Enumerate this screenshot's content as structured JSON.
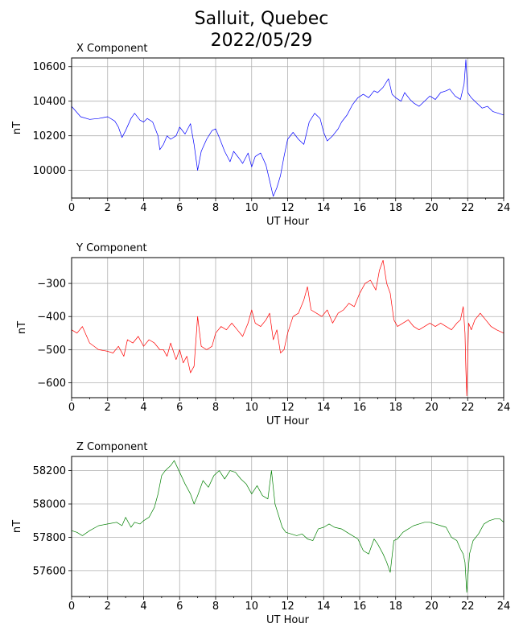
{
  "figure": {
    "title_line1": "Salluit, Quebec",
    "title_line2": "2022/05/29"
  },
  "chart_data": [
    {
      "type": "line",
      "title": "X Component",
      "xlabel": "UT Hour",
      "ylabel": "nT",
      "color": "#0000ff",
      "xlim": [
        0,
        24
      ],
      "ylim": [
        9840,
        10650
      ],
      "xticks": [
        0,
        2,
        4,
        6,
        8,
        10,
        12,
        14,
        16,
        18,
        20,
        22,
        24
      ],
      "yticks": [
        10000,
        10200,
        10400,
        10600
      ],
      "grid": true,
      "x": [
        0,
        0.5,
        1,
        1.5,
        2,
        2.4,
        2.6,
        2.8,
        3.0,
        3.3,
        3.5,
        3.8,
        4.0,
        4.2,
        4.5,
        4.8,
        4.9,
        5.1,
        5.3,
        5.5,
        5.8,
        6.0,
        6.3,
        6.6,
        6.8,
        7.0,
        7.2,
        7.5,
        7.8,
        8.0,
        8.2,
        8.5,
        8.8,
        9.0,
        9.3,
        9.5,
        9.8,
        10.0,
        10.2,
        10.5,
        10.8,
        11.0,
        11.2,
        11.4,
        11.6,
        11.8,
        12.0,
        12.3,
        12.6,
        12.9,
        13.2,
        13.5,
        13.8,
        14.0,
        14.2,
        14.5,
        14.8,
        15.0,
        15.3,
        15.6,
        15.9,
        16.2,
        16.5,
        16.8,
        17.0,
        17.3,
        17.6,
        17.8,
        18.0,
        18.3,
        18.5,
        18.8,
        19.0,
        19.3,
        19.6,
        19.9,
        20.2,
        20.5,
        20.8,
        21.0,
        21.3,
        21.6,
        21.8,
        21.9,
        22.0,
        22.2,
        22.5,
        22.8,
        23.1,
        23.4,
        23.7,
        24.0
      ],
      "y": [
        10370,
        10310,
        10295,
        10300,
        10310,
        10285,
        10250,
        10190,
        10230,
        10300,
        10330,
        10290,
        10280,
        10300,
        10280,
        10200,
        10120,
        10150,
        10200,
        10180,
        10200,
        10250,
        10210,
        10270,
        10150,
        10000,
        10110,
        10180,
        10230,
        10240,
        10190,
        10110,
        10050,
        10110,
        10070,
        10040,
        10100,
        10020,
        10080,
        10100,
        10030,
        9940,
        9850,
        9900,
        9970,
        10080,
        10180,
        10220,
        10180,
        10150,
        10280,
        10330,
        10300,
        10220,
        10170,
        10200,
        10240,
        10280,
        10320,
        10380,
        10420,
        10440,
        10420,
        10460,
        10450,
        10480,
        10530,
        10440,
        10420,
        10400,
        10450,
        10410,
        10390,
        10370,
        10400,
        10430,
        10410,
        10450,
        10460,
        10470,
        10430,
        10410,
        10500,
        10640,
        10450,
        10420,
        10390,
        10360,
        10370,
        10340,
        10330,
        10320
      ]
    },
    {
      "type": "line",
      "title": "Y Component",
      "xlabel": "UT Hour",
      "ylabel": "nT",
      "color": "#ff0000",
      "xlim": [
        0,
        24
      ],
      "ylim": [
        -645,
        -222
      ],
      "xticks": [
        0,
        2,
        4,
        6,
        8,
        10,
        12,
        14,
        16,
        18,
        20,
        22,
        24
      ],
      "yticks": [
        -300,
        -400,
        -500,
        -600
      ],
      "grid": true,
      "x": [
        0,
        0.3,
        0.6,
        1.0,
        1.5,
        2.0,
        2.3,
        2.6,
        2.9,
        3.1,
        3.4,
        3.7,
        4.0,
        4.3,
        4.6,
        4.9,
        5.1,
        5.3,
        5.5,
        5.8,
        6.0,
        6.2,
        6.4,
        6.6,
        6.8,
        7.0,
        7.2,
        7.5,
        7.8,
        8.0,
        8.3,
        8.6,
        8.9,
        9.2,
        9.5,
        9.8,
        10.0,
        10.2,
        10.5,
        10.8,
        11.0,
        11.2,
        11.4,
        11.6,
        11.8,
        12.0,
        12.3,
        12.6,
        12.9,
        13.1,
        13.3,
        13.6,
        13.9,
        14.2,
        14.5,
        14.8,
        15.1,
        15.4,
        15.7,
        16.0,
        16.3,
        16.6,
        16.9,
        17.1,
        17.3,
        17.5,
        17.7,
        17.9,
        18.1,
        18.4,
        18.7,
        19.0,
        19.3,
        19.6,
        19.9,
        20.2,
        20.5,
        20.8,
        21.1,
        21.4,
        21.6,
        21.75,
        21.85,
        21.9,
        21.95,
        22.05,
        22.2,
        22.4,
        22.7,
        23.0,
        23.3,
        23.6,
        24.0
      ],
      "y": [
        -440,
        -450,
        -430,
        -480,
        -500,
        -505,
        -510,
        -490,
        -520,
        -470,
        -480,
        -460,
        -490,
        -470,
        -480,
        -500,
        -500,
        -520,
        -480,
        -530,
        -500,
        -540,
        -520,
        -570,
        -550,
        -400,
        -490,
        -500,
        -490,
        -450,
        -430,
        -440,
        -420,
        -440,
        -460,
        -420,
        -380,
        -420,
        -430,
        -410,
        -390,
        -470,
        -440,
        -510,
        -500,
        -450,
        -400,
        -390,
        -350,
        -310,
        -380,
        -390,
        -400,
        -380,
        -420,
        -390,
        -380,
        -360,
        -370,
        -330,
        -300,
        -290,
        -320,
        -260,
        -230,
        -300,
        -330,
        -410,
        -430,
        -420,
        -410,
        -430,
        -440,
        -430,
        -420,
        -430,
        -420,
        -430,
        -440,
        -420,
        -410,
        -370,
        -450,
        -560,
        -640,
        -420,
        -440,
        -410,
        -390,
        -410,
        -430,
        -440,
        -450
      ]
    },
    {
      "type": "line",
      "title": "Z Component",
      "xlabel": "UT Hour",
      "ylabel": "nT",
      "color": "#008000",
      "xlim": [
        0,
        24
      ],
      "ylim": [
        57445,
        58285
      ],
      "xticks": [
        0,
        2,
        4,
        6,
        8,
        10,
        12,
        14,
        16,
        18,
        20,
        22,
        24
      ],
      "yticks": [
        57600,
        57800,
        58000,
        58200
      ],
      "grid": true,
      "x": [
        0,
        0.3,
        0.6,
        1.0,
        1.5,
        2.0,
        2.5,
        2.8,
        3.0,
        3.3,
        3.5,
        3.8,
        4.0,
        4.3,
        4.6,
        4.8,
        5.0,
        5.2,
        5.5,
        5.7,
        6.0,
        6.3,
        6.6,
        6.8,
        7.0,
        7.3,
        7.6,
        7.9,
        8.2,
        8.5,
        8.8,
        9.1,
        9.4,
        9.7,
        10.0,
        10.3,
        10.6,
        10.9,
        11.1,
        11.3,
        11.5,
        11.7,
        11.9,
        12.2,
        12.5,
        12.8,
        13.1,
        13.4,
        13.7,
        14.0,
        14.3,
        14.6,
        15.0,
        15.3,
        15.6,
        15.9,
        16.2,
        16.5,
        16.8,
        17.0,
        17.3,
        17.5,
        17.7,
        17.9,
        18.1,
        18.4,
        18.7,
        19.0,
        19.3,
        19.6,
        19.9,
        20.2,
        20.5,
        20.8,
        21.1,
        21.4,
        21.6,
        21.75,
        21.85,
        21.95,
        22.1,
        22.3,
        22.6,
        22.9,
        23.2,
        23.5,
        23.8,
        24.0
      ],
      "y": [
        57840,
        57830,
        57810,
        57840,
        57870,
        57880,
        57890,
        57870,
        57920,
        57860,
        57890,
        57880,
        57900,
        57920,
        57980,
        58060,
        58170,
        58200,
        58230,
        58260,
        58190,
        58120,
        58060,
        58000,
        58050,
        58140,
        58100,
        58170,
        58200,
        58150,
        58200,
        58190,
        58150,
        58120,
        58060,
        58110,
        58050,
        58030,
        58200,
        58000,
        57930,
        57860,
        57830,
        57820,
        57810,
        57820,
        57790,
        57780,
        57850,
        57860,
        57880,
        57860,
        57850,
        57830,
        57810,
        57790,
        57720,
        57700,
        57790,
        57760,
        57700,
        57650,
        57590,
        57780,
        57790,
        57830,
        57850,
        57870,
        57880,
        57890,
        57890,
        57880,
        57870,
        57860,
        57800,
        57780,
        57730,
        57700,
        57650,
        57470,
        57700,
        57780,
        57820,
        57880,
        57900,
        57910,
        57910,
        57890
      ]
    }
  ]
}
